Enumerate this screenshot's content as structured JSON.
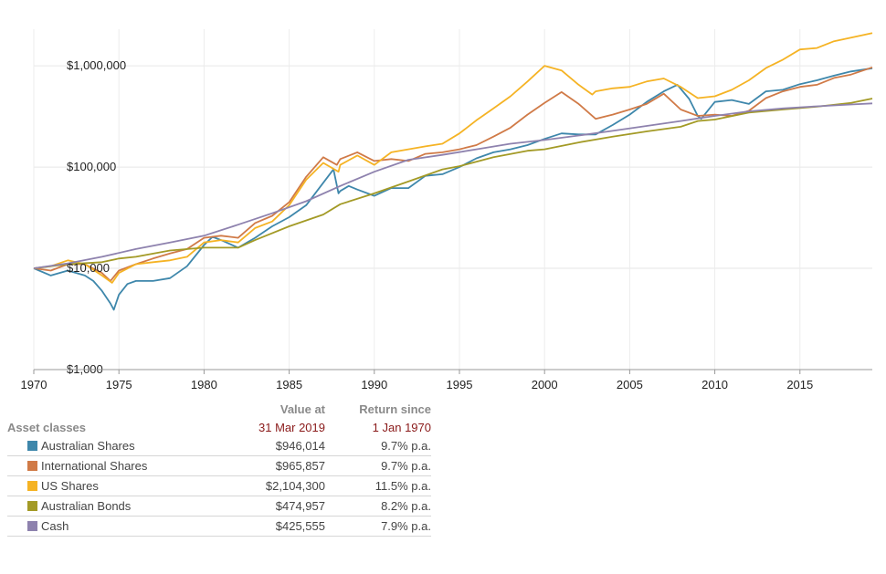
{
  "chart_data": {
    "type": "line",
    "title": "",
    "xlabel": "",
    "ylabel": "",
    "y_scale": "log",
    "ylim": [
      1000,
      2300000
    ],
    "xlim": [
      1970,
      2019.25
    ],
    "y_ticks": [
      1000,
      10000,
      100000,
      1000000
    ],
    "y_tick_labels": [
      "$1,000",
      "$10,000",
      "$100,000",
      "$1,000,000"
    ],
    "x_ticks": [
      1970,
      1975,
      1980,
      1985,
      1990,
      1995,
      2000,
      2005,
      2010,
      2015
    ],
    "x_tick_labels": [
      "1970",
      "1975",
      "1980",
      "1985",
      "1990",
      "1995",
      "2000",
      "2005",
      "2010",
      "2015"
    ],
    "grid": true,
    "series": [
      {
        "name": "Australian Shares",
        "color": "#3e87ab",
        "x": [
          1970,
          1971,
          1972,
          1973,
          1973.5,
          1974,
          1974.5,
          1974.7,
          1975,
          1975.5,
          1976,
          1977,
          1978,
          1979,
          1980,
          1980.5,
          1981,
          1982,
          1983,
          1984,
          1985,
          1986,
          1987,
          1987.6,
          1987.9,
          1988,
          1988.5,
          1989,
          1990,
          1991,
          1992,
          1993,
          1994,
          1995,
          1996,
          1997,
          1998,
          1999,
          2000,
          2001,
          2002,
          2003,
          2004,
          2005,
          2006,
          2007,
          2007.8,
          2008.5,
          2009,
          2009.2,
          2010,
          2011,
          2012,
          2013,
          2014,
          2015,
          2016,
          2017,
          2018,
          2019.25
        ],
        "y": [
          10000,
          8500,
          9500,
          8500,
          7500,
          6000,
          4500,
          3900,
          5500,
          7000,
          7500,
          7500,
          8000,
          10500,
          17000,
          20500,
          19000,
          16000,
          20000,
          26000,
          32000,
          42000,
          70000,
          95000,
          55000,
          58000,
          65000,
          60000,
          52000,
          62000,
          62000,
          82000,
          85000,
          100000,
          122000,
          140000,
          150000,
          165000,
          190000,
          215000,
          210000,
          210000,
          260000,
          330000,
          440000,
          560000,
          650000,
          470000,
          320000,
          300000,
          440000,
          460000,
          420000,
          560000,
          580000,
          660000,
          720000,
          800000,
          880000,
          946014
        ]
      },
      {
        "name": "International Shares",
        "color": "#d07a47",
        "x": [
          1970,
          1971,
          1972,
          1973,
          1974,
          1974.5,
          1975,
          1976,
          1977,
          1978,
          1979,
          1980,
          1981,
          1982,
          1983,
          1984,
          1985,
          1986,
          1987,
          1987.8,
          1988,
          1989,
          1990,
          1991,
          1992,
          1993,
          1994,
          1995,
          1996,
          1997,
          1998,
          1999,
          2000,
          2001,
          2002,
          2003,
          2004,
          2005,
          2006,
          2007,
          2008,
          2009,
          2010,
          2011,
          2012,
          2013,
          2014,
          2015,
          2016,
          2017,
          2018,
          2019.25
        ],
        "y": [
          10000,
          9500,
          11000,
          11000,
          9000,
          7500,
          9500,
          11000,
          12500,
          14000,
          15500,
          20000,
          21000,
          20000,
          28000,
          33000,
          45000,
          80000,
          125000,
          105000,
          120000,
          140000,
          115000,
          120000,
          115000,
          135000,
          140000,
          150000,
          165000,
          200000,
          245000,
          330000,
          430000,
          550000,
          420000,
          300000,
          330000,
          370000,
          420000,
          530000,
          370000,
          320000,
          330000,
          320000,
          360000,
          480000,
          560000,
          620000,
          650000,
          760000,
          820000,
          965857
        ]
      },
      {
        "name": "US Shares",
        "color": "#f5b324",
        "x": [
          1970,
          1971,
          1972,
          1973,
          1974,
          1974.6,
          1975,
          1976,
          1977,
          1978,
          1979,
          1980,
          1981,
          1982,
          1983,
          1984,
          1985,
          1986,
          1987,
          1987.9,
          1988,
          1989,
          1990,
          1991,
          1992,
          1993,
          1994,
          1995,
          1996,
          1997,
          1998,
          1999,
          2000,
          2001,
          2002,
          2002.8,
          2003,
          2004,
          2005,
          2006,
          2007,
          2008,
          2009,
          2010,
          2011,
          2012,
          2013,
          2014,
          2015,
          2016,
          2017,
          2018,
          2019.25
        ],
        "y": [
          10000,
          10500,
          12000,
          11000,
          8500,
          7200,
          9000,
          11000,
          11500,
          12000,
          13000,
          18000,
          19000,
          18000,
          25000,
          29000,
          42000,
          75000,
          110000,
          90000,
          105000,
          130000,
          105000,
          140000,
          150000,
          160000,
          170000,
          215000,
          290000,
          380000,
          500000,
          700000,
          1000000,
          900000,
          650000,
          520000,
          560000,
          600000,
          620000,
          700000,
          750000,
          620000,
          480000,
          500000,
          580000,
          720000,
          950000,
          1150000,
          1450000,
          1500000,
          1750000,
          1900000,
          2104300
        ]
      },
      {
        "name": "Australian Bonds",
        "color": "#a39a26",
        "x": [
          1970,
          1972,
          1974,
          1975,
          1976,
          1978,
          1980,
          1982,
          1983,
          1985,
          1987,
          1988,
          1990,
          1992,
          1994,
          1995,
          1997,
          1999,
          2000,
          2002,
          2004,
          2006,
          2008,
          2009,
          2010,
          2012,
          2014,
          2016,
          2018,
          2019.25
        ],
        "y": [
          10000,
          11000,
          11500,
          12500,
          13000,
          15000,
          16000,
          16000,
          19000,
          26000,
          34000,
          43000,
          55000,
          72000,
          95000,
          102000,
          125000,
          145000,
          150000,
          175000,
          200000,
          225000,
          250000,
          285000,
          295000,
          345000,
          370000,
          395000,
          430000,
          474957
        ]
      },
      {
        "name": "Cash",
        "color": "#8e82ae",
        "x": [
          1970,
          1972,
          1974,
          1976,
          1978,
          1980,
          1982,
          1984,
          1986,
          1988,
          1990,
          1992,
          1994,
          1996,
          1998,
          2000,
          2002,
          2004,
          2006,
          2008,
          2010,
          2012,
          2014,
          2016,
          2018,
          2019.25
        ],
        "y": [
          10000,
          11200,
          13000,
          15500,
          18000,
          21000,
          27000,
          35000,
          46000,
          65000,
          90000,
          118000,
          132000,
          150000,
          170000,
          185000,
          205000,
          228000,
          255000,
          285000,
          320000,
          355000,
          380000,
          398000,
          415000,
          425555
        ]
      }
    ]
  },
  "table": {
    "header_value_line1": "Value at",
    "header_value_line2": "31 Mar 2019",
    "header_return_line1": "Return since",
    "header_return_line2": "1 Jan 1970",
    "header_asset": "Asset classes",
    "rows": [
      {
        "name": "Australian Shares",
        "color": "#3e87ab",
        "value": "$946,014",
        "return": "9.7% p.a."
      },
      {
        "name": "International Shares",
        "color": "#d07a47",
        "value": "$965,857",
        "return": "9.7% p.a."
      },
      {
        "name": "US Shares",
        "color": "#f5b324",
        "value": "$2,104,300",
        "return": "11.5% p.a."
      },
      {
        "name": "Australian Bonds",
        "color": "#a39a26",
        "value": "$474,957",
        "return": "8.2% p.a."
      },
      {
        "name": "Cash",
        "color": "#8e82ae",
        "value": "$425,555",
        "return": "7.9% p.a."
      }
    ]
  }
}
